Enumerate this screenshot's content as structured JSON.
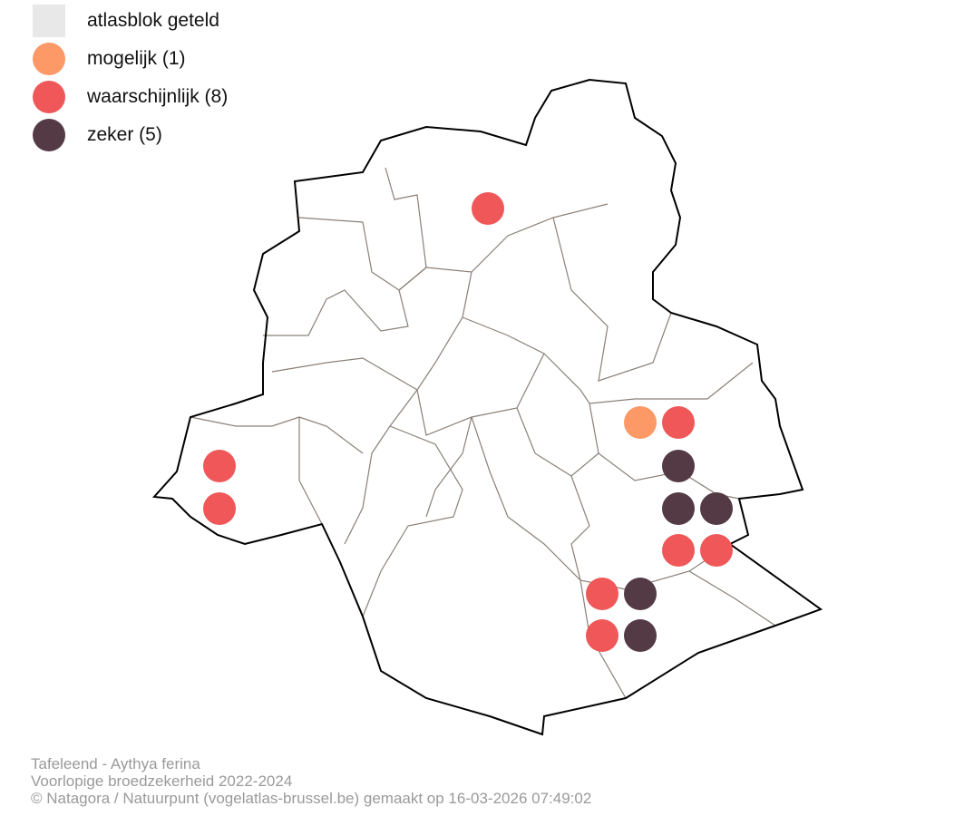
{
  "legend": [
    {
      "label": "atlasblok geteld",
      "shape": "square",
      "color": "#e8e8e8"
    },
    {
      "label": "mogelijk (1)",
      "shape": "circle",
      "color": "#fc9966",
      "count": 1
    },
    {
      "label": "waarschijnlijk (8)",
      "shape": "circle",
      "color": "#ef5759",
      "count": 8
    },
    {
      "label": "zeker (5)",
      "shape": "circle",
      "color": "#533a44",
      "count": 5
    }
  ],
  "caption": {
    "line1": "Tafeleend - Aythya ferina",
    "line2": "Voorlopige broedzekerheid 2022-2024",
    "line3": "© Natagora / Natuurpunt (vogelatlas-brussel.be) gemaakt op 16-03-2026 07:49:02"
  }
}
